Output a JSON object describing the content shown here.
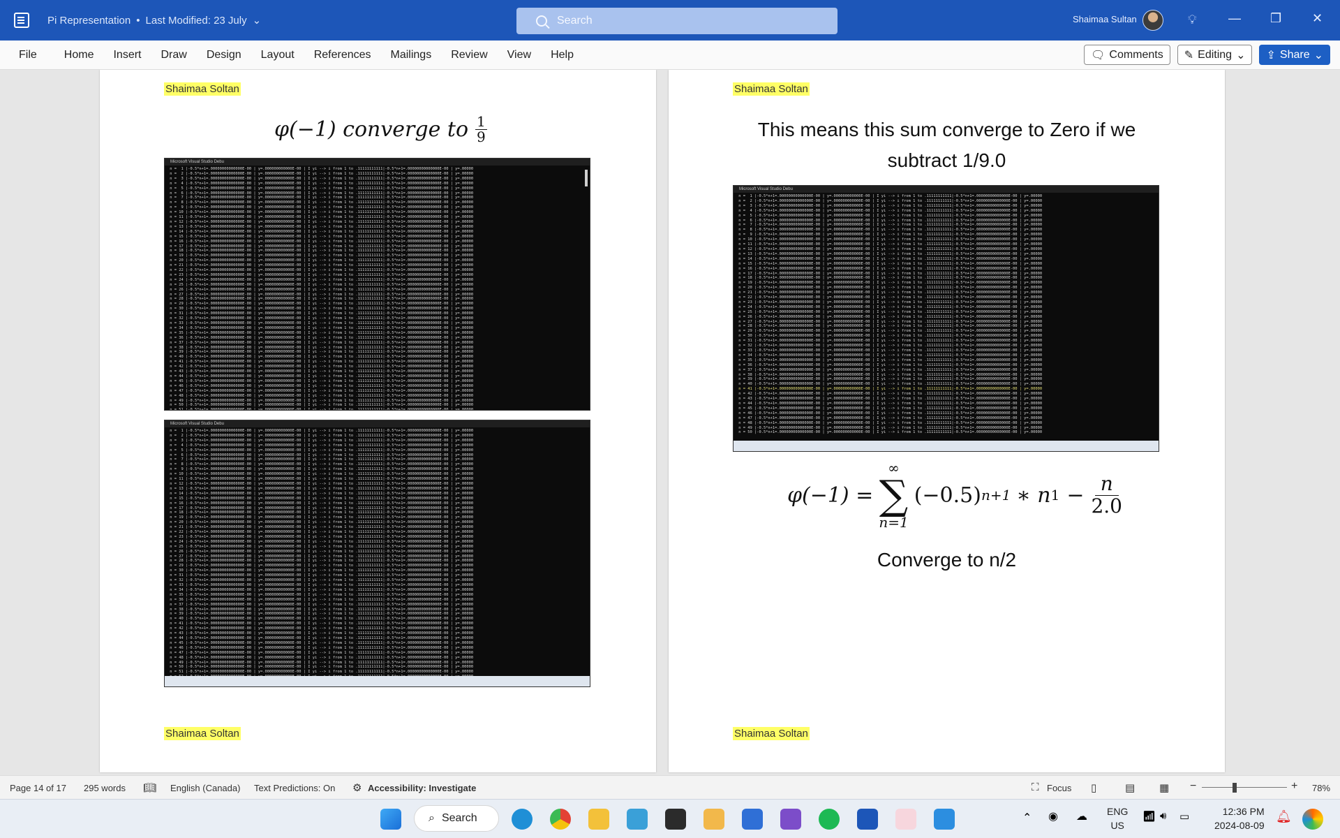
{
  "titlebar": {
    "doc_title": "Pi Representation",
    "separator": "•",
    "modified": "Last Modified: 23 July",
    "search_placeholder": "Search",
    "user_name": "Shaimaa Sultan"
  },
  "menu": [
    "File",
    "Home",
    "Insert",
    "Draw",
    "Design",
    "Layout",
    "References",
    "Mailings",
    "Review",
    "View",
    "Help"
  ],
  "ribbon_buttons": {
    "comments": "Comments",
    "editing": "Editing",
    "share": "Share"
  },
  "pages": {
    "left": {
      "author_top": "Shaimaa Soltan",
      "author_bottom": "Shaimaa Soltan",
      "equation": {
        "lhs": "φ(−1) converge to",
        "num": "1",
        "den": "9"
      },
      "console1_title": "Microsoft Visual Studio Debu",
      "console2_title": "Microsoft Visual Studio Debu"
    },
    "right": {
      "author_top": "Shaimaa Soltan",
      "author_bottom": "Shaimaa Soltan",
      "text_line1": "This means this sum converge to Zero if we",
      "text_line2": "subtract 1/9.0",
      "console_title": "Microsoft Visual Studio Debu",
      "formula": {
        "lhs": "φ(−1) =",
        "upper": "∞",
        "lower": "n=1",
        "base": "(−0.5)",
        "exp1": "n+1",
        "mid": "∗ n",
        "exp2": "1",
        "minus": "−",
        "num": "n",
        "den": "2.0"
      },
      "conclusion": "Converge to n/2"
    }
  },
  "statusbar": {
    "page": "Page 14 of 17",
    "words": "295 words",
    "language": "English (Canada)",
    "predictions": "Text Predictions: On",
    "accessibility": "Accessibility: Investigate",
    "focus": "Focus",
    "zoom": "78%"
  },
  "taskbar": {
    "search": "Search",
    "lang1": "ENG",
    "lang2": "US",
    "time": "12:36 PM",
    "date": "2024-08-09"
  }
}
